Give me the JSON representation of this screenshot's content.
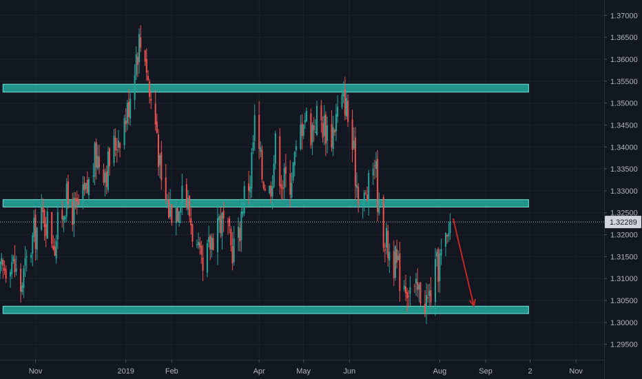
{
  "chart_data": {
    "type": "candlestick",
    "y_axis": {
      "ticks": [
        1.37,
        1.365,
        1.36,
        1.355,
        1.35,
        1.345,
        1.34,
        1.335,
        1.33,
        1.325,
        1.32,
        1.315,
        1.31,
        1.305,
        1.3,
        1.295
      ],
      "tick_labels": [
        "1.37000",
        "1.36500",
        "1.36000",
        "1.35500",
        "1.35000",
        "1.34500",
        "1.34000",
        "1.33500",
        "1.33000",
        "1.32500",
        "1.32000",
        "1.31500",
        "1.31000",
        "1.30500",
        "1.30000",
        "1.29500"
      ],
      "ylim": [
        1.2915,
        1.3735
      ]
    },
    "x_axis": {
      "labels": [
        "Nov",
        "2019",
        "Feb",
        "Apr",
        "May",
        "Jun",
        "Aug",
        "Sep",
        "2",
        "Nov"
      ],
      "label_dates": [
        "2018-11-01",
        "2019-01-01",
        "2019-02-01",
        "2019-04-01",
        "2019-05-01",
        "2019-06-01",
        "2019-08-01",
        "2019-09-01",
        "2019-10-01",
        "2019-11-01"
      ],
      "xlim": [
        "2018-10-08",
        "2019-11-20"
      ]
    },
    "last_price": {
      "value": 1.32289,
      "label": "1.32289"
    },
    "zones": [
      {
        "from": 1.3525,
        "to": 1.3543,
        "start": "2018-10-10",
        "end": "2019-09-30",
        "color": "#26a69a"
      },
      {
        "from": 1.3263,
        "to": 1.328,
        "start": "2018-10-10",
        "end": "2019-09-30",
        "color": "#26a69a"
      },
      {
        "from": 1.302,
        "to": 1.3037,
        "start": "2018-10-10",
        "end": "2019-09-30",
        "color": "#26a69a"
      }
    ],
    "arrow": {
      "from": {
        "date": "2019-08-10",
        "price": 1.3237
      },
      "to": {
        "date": "2019-08-24",
        "price": 1.3038
      },
      "color": "#c62828"
    },
    "candle_colors": {
      "up": "#26a69a",
      "down": "#ef5350"
    },
    "candles": {
      "start_date": "2018-10-08",
      "step_days": 1,
      "skip_weekends": true,
      "close_path": [
        [
          "2018-10-08",
          1.3105
        ],
        [
          "2018-10-15",
          1.3155
        ],
        [
          "2018-10-22",
          1.308
        ],
        [
          "2018-10-31",
          1.32
        ],
        [
          "2018-11-07",
          1.3245
        ],
        [
          "2018-11-14",
          1.3185
        ],
        [
          "2018-11-21",
          1.328
        ],
        [
          "2018-11-28",
          1.325
        ],
        [
          "2018-12-05",
          1.329
        ],
        [
          "2018-12-12",
          1.338
        ],
        [
          "2018-12-19",
          1.335
        ],
        [
          "2018-12-26",
          1.342
        ],
        [
          "2019-01-02",
          1.348
        ],
        [
          "2019-01-07",
          1.36
        ],
        [
          "2019-01-10",
          1.364
        ],
        [
          "2019-01-14",
          1.362
        ],
        [
          "2019-01-17",
          1.352
        ],
        [
          "2019-01-22",
          1.344
        ],
        [
          "2019-01-25",
          1.33
        ],
        [
          "2019-01-30",
          1.326
        ],
        [
          "2019-02-05",
          1.327
        ],
        [
          "2019-02-08",
          1.332
        ],
        [
          "2019-02-13",
          1.325
        ],
        [
          "2019-02-18",
          1.316
        ],
        [
          "2019-02-22",
          1.31
        ],
        [
          "2019-02-27",
          1.318
        ],
        [
          "2019-03-04",
          1.324
        ],
        [
          "2019-03-08",
          1.322
        ],
        [
          "2019-03-13",
          1.317
        ],
        [
          "2019-03-18",
          1.319
        ],
        [
          "2019-03-21",
          1.328
        ],
        [
          "2019-03-26",
          1.333
        ],
        [
          "2019-03-29",
          1.345
        ],
        [
          "2019-04-03",
          1.334
        ],
        [
          "2019-04-08",
          1.33
        ],
        [
          "2019-04-12",
          1.34
        ],
        [
          "2019-04-17",
          1.332
        ],
        [
          "2019-04-22",
          1.333
        ],
        [
          "2019-04-26",
          1.338
        ],
        [
          "2019-05-01",
          1.348
        ],
        [
          "2019-05-06",
          1.344
        ],
        [
          "2019-05-10",
          1.347
        ],
        [
          "2019-05-15",
          1.345
        ],
        [
          "2019-05-20",
          1.343
        ],
        [
          "2019-05-24",
          1.348
        ],
        [
          "2019-05-29",
          1.351
        ],
        [
          "2019-06-03",
          1.34
        ],
        [
          "2019-06-06",
          1.332
        ],
        [
          "2019-06-10",
          1.327
        ],
        [
          "2019-06-14",
          1.33
        ],
        [
          "2019-06-18",
          1.338
        ],
        [
          "2019-06-21",
          1.325
        ],
        [
          "2019-06-26",
          1.318
        ],
        [
          "2019-07-01",
          1.314
        ],
        [
          "2019-07-05",
          1.311
        ],
        [
          "2019-07-10",
          1.309
        ],
        [
          "2019-07-15",
          1.306
        ],
        [
          "2019-07-19",
          1.307
        ],
        [
          "2019-07-24",
          1.3045
        ],
        [
          "2019-07-29",
          1.311
        ],
        [
          "2019-08-02",
          1.315
        ],
        [
          "2019-08-06",
          1.318
        ],
        [
          "2019-08-08",
          1.3229
        ]
      ]
    }
  }
}
